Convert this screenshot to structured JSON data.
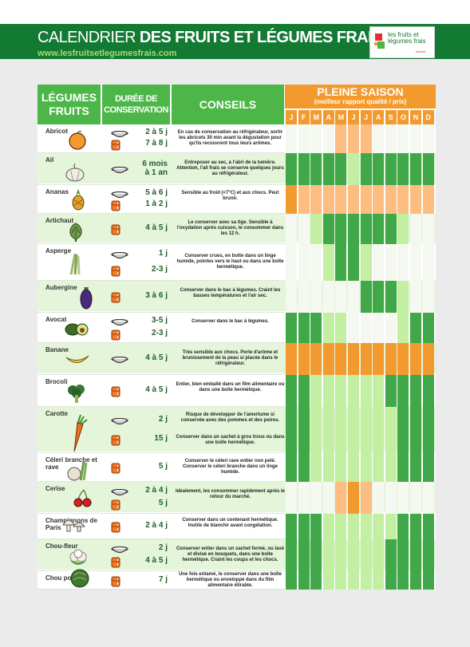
{
  "header": {
    "title_light": "CALENDRIER",
    "title_bold": "DES FRUITS ET LÉGUMES FRAIS",
    "website": "www.lesfruitsetlegumesfrais.com",
    "logo_text_1": "les fruits et",
    "logo_text_2": "légumes frais",
    "logo_sub": "Interfel"
  },
  "columns": {
    "legumes": "LÉGUMES",
    "fruits": "FRUITS",
    "duree_1": "DURÉE DE",
    "duree_2": "CONSERVATION",
    "conseils": "CONSEILS",
    "saison": "PLEINE SAISON",
    "saison_sub": "(meilleur rapport qualité / prix)"
  },
  "months": [
    "J",
    "F",
    "M",
    "A",
    "M",
    "J",
    "J",
    "A",
    "S",
    "O",
    "N",
    "D"
  ],
  "colors": {
    "banner": "#127a33",
    "header_green": "#4cb748",
    "orange": "#f39a2f",
    "light_orange": "#fdbd80",
    "green": "#41a849",
    "light_green": "#c3efa2",
    "pale": "#f4f8f1"
  },
  "legend_note": "month cells: O = pleine saison fruit (orange), o = début/fin fruit (light orange), G = pleine saison légume (green), g = début/fin légume (light green), . = hors saison",
  "items": [
    {
      "name": "Abricot",
      "durations": [
        {
          "icon": "bowl-icon",
          "text": "2 à 5 j"
        },
        {
          "icon": "fridge-icon",
          "text": "7 à 8 j"
        }
      ],
      "tip": "En cas de conservation au réfrigérateur, sortir les abricots 30 min avant la dégustation pour qu'ils recouvrent tous leurs arômes.",
      "months": "....ooo.....",
      "illustration": "apricot"
    },
    {
      "name": "Ail",
      "durations": [
        {
          "icon": "bowl-icon",
          "text": "6 mois\nà 1 an"
        }
      ],
      "tip": "Entreposer au sec, à l'abri de la lumière. Attention, l'ail frais se conserve quelques jours au réfrigérateur.",
      "months": "GGGGGgGGGGGG",
      "illustration": "garlic"
    },
    {
      "name": "Ananas",
      "durations": [
        {
          "icon": "bowl-icon",
          "text": "5 à 6 j"
        },
        {
          "icon": "fridge-icon",
          "text": "1 à 2 j"
        }
      ],
      "tip": "Sensible au froid (<7°C) et aux chocs. Peut brunir.",
      "months": "Oooooooooooo",
      "illustration": "pineapple"
    },
    {
      "name": "Artichaut",
      "durations": [
        {
          "icon": "fridge-icon",
          "text": "4 à 5 j"
        }
      ],
      "tip": "Le conserver avec sa tige. Sensible à l'oxydation après cuisson, le consommer dans les 12 h.",
      "months": "..gGGGGGGg..",
      "illustration": "artichoke"
    },
    {
      "name": "Asperge",
      "durations": [
        {
          "icon": "bowl-icon",
          "text": "1 j"
        },
        {
          "icon": "fridge-icon",
          "text": "2-3 j"
        }
      ],
      "tip": "Conserver crues, en botte dans un linge humide, pointes vers le haut ou dans une boîte hermétique.",
      "months": "...gGGg.....",
      "illustration": "asparagus"
    },
    {
      "name": "Aubergine",
      "durations": [
        {
          "icon": "fridge-icon",
          "text": "3 à 6 j"
        }
      ],
      "tip": "Conserver dans le bac à légumes. Craint les basses températures et l'air sec.",
      "months": "......GGGg..",
      "illustration": "eggplant"
    },
    {
      "name": "Avocat",
      "durations": [
        {
          "icon": "bowl-icon",
          "text": "3-5 j"
        },
        {
          "icon": "fridge-icon",
          "text": "2-3 j"
        }
      ],
      "tip": "Conserver dans le bac à légumes.",
      "months": "GGGgg....gGG",
      "illustration": "avocado"
    },
    {
      "name": "Banane",
      "durations": [
        {
          "icon": "bowl-icon",
          "text": "4 à 5 j"
        }
      ],
      "tip": "Très sensible aux chocs. Perte d'arôme et brunissement de la peau si placée dans le réfrigérateur.",
      "months": "OOOOOOOOOOOO",
      "illustration": "banana"
    },
    {
      "name": "Brocoli",
      "durations": [
        {
          "icon": "fridge-icon",
          "text": "4 à 5 j"
        }
      ],
      "tip": "Entier, bien emballé dans un film alimentaire ou dans une boîte hermétique.",
      "months": "GGggggggGGGG",
      "illustration": "broccoli"
    },
    {
      "name": "Carotte",
      "durations": [
        {
          "icon": "bowl-icon",
          "text": "2 j"
        },
        {
          "icon": "fridge-icon",
          "text": "15 j"
        }
      ],
      "tip": "Risque de développer de l'amertume si conservée avec des pommes et des poires.|Conserver dans un sachet à gros trous ou dans une boîte hermétique.",
      "months": "GGgggggggGGG",
      "illustration": "carrot"
    },
    {
      "name": "Céleri branche et rave",
      "durations": [
        {
          "icon": "fridge-icon",
          "text": "5 j"
        }
      ],
      "tip": "Conserver le céleri rave entier non pelé. Conserver le céleri branche dans un linge humide.",
      "months": "GGgggggggGGG",
      "illustration": "celery"
    },
    {
      "name": "Cerise",
      "durations": [
        {
          "icon": "bowl-icon",
          "text": "2 à 4 j"
        },
        {
          "icon": "fridge-icon",
          "text": "5 j"
        }
      ],
      "tip": "Idéalement, les consommer rapidement après le retour du marché.",
      "months": "....oOo.....",
      "illustration": "cherry"
    },
    {
      "name": "Champignons de Paris",
      "durations": [
        {
          "icon": "fridge-icon",
          "text": "2 à 4 j"
        }
      ],
      "tip": "Conserver dans un contenant hermétique. Inutile de blanchir avant congélation.",
      "months": "GGGggggggGGG",
      "illustration": "mushroom"
    },
    {
      "name": "Chou-fleur",
      "durations": [
        {
          "icon": "bowl-icon",
          "text": "2 j"
        },
        {
          "icon": "fridge-icon",
          "text": "4 à 5 j"
        }
      ],
      "tip": "Conserver entier dans un sachet fermé, ou lavé et divisé en bouquets, dans une boîte hermétique. Craint les coups et les chocs.",
      "months": "GGGgggggGGGG",
      "illustration": "cauliflower"
    },
    {
      "name": "Chou pommé",
      "durations": [
        {
          "icon": "fridge-icon",
          "text": "7 j"
        }
      ],
      "tip": "Une fois entamé, le conserver dans une boîte hermétique ou enveloppé dans du film alimentaire étirable.",
      "months": "GGGgggggGGGG",
      "illustration": "cabbage"
    }
  ]
}
